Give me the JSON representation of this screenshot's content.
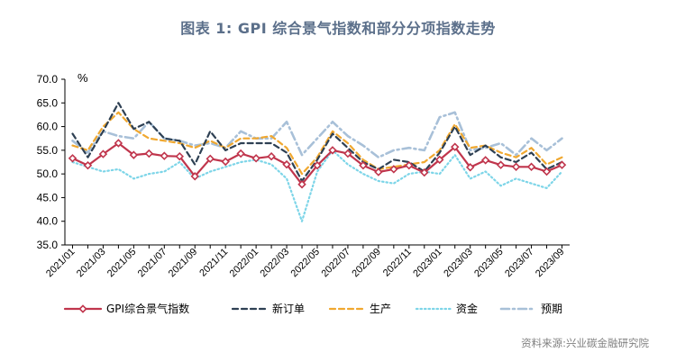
{
  "title": "图表 1:  GPI 综合景气指数和部分分项指数走势",
  "source": "资料来源:兴业碳金融研究院",
  "chart_data": {
    "type": "line",
    "ylabel": "%",
    "ylim": [
      35,
      70
    ],
    "yticks": [
      "70.0",
      "65.0",
      "60.0",
      "55.0",
      "50.0",
      "45.0",
      "40.0",
      "35.0"
    ],
    "x": [
      "2021/01",
      "2021/02",
      "2021/03",
      "2021/04",
      "2021/05",
      "2021/06",
      "2021/07",
      "2021/08",
      "2021/09",
      "2021/10",
      "2021/11",
      "2021/12",
      "2022/01",
      "2022/02",
      "2022/03",
      "2022/04",
      "2022/05",
      "2022/06",
      "2022/07",
      "2022/08",
      "2022/09",
      "2022/10",
      "2022/11",
      "2022/12",
      "2023/01",
      "2023/02",
      "2023/03",
      "2023/04",
      "2023/05",
      "2023/06",
      "2023/07",
      "2023/08",
      "2023/09"
    ],
    "xtick_labels": [
      "2021/01",
      "2021/03",
      "2021/05",
      "2021/07",
      "2021/09",
      "2021/11",
      "2022/01",
      "2022/03",
      "2022/05",
      "2022/07",
      "2022/09",
      "2022/11",
      "2023/01",
      "2023/03",
      "2023/05",
      "2023/07",
      "2023/09"
    ],
    "series": [
      {
        "name": "GPI综合景气指数",
        "color": "#c0354c",
        "style": "solid-diamond",
        "values": [
          53.3,
          51.8,
          54.2,
          56.5,
          54.0,
          54.3,
          53.8,
          53.7,
          49.5,
          53.2,
          52.6,
          54.3,
          53.3,
          53.7,
          52.0,
          47.8,
          51.8,
          55.0,
          54.3,
          51.8,
          50.4,
          51.0,
          51.8,
          50.3,
          53.0,
          55.7,
          51.4,
          52.9,
          51.9,
          51.5,
          51.5,
          50.5,
          51.9
        ]
      },
      {
        "name": "新订单",
        "color": "#2e4053",
        "style": "dash",
        "values": [
          58.5,
          53.5,
          59.0,
          65.0,
          59.5,
          61.0,
          57.5,
          57.0,
          52.0,
          59.0,
          55.0,
          56.5,
          56.5,
          56.5,
          54.5,
          48.5,
          53.0,
          58.5,
          55.5,
          52.5,
          51.0,
          53.0,
          52.5,
          50.5,
          54.5,
          60.0,
          54.0,
          56.0,
          53.5,
          52.5,
          54.5,
          51.0,
          52.5
        ]
      },
      {
        "name": "生产",
        "color": "#f0a830",
        "style": "dash",
        "values": [
          56.0,
          55.0,
          60.0,
          63.0,
          59.5,
          57.5,
          57.0,
          56.5,
          55.5,
          57.0,
          55.5,
          57.5,
          57.5,
          58.0,
          55.5,
          50.0,
          53.5,
          59.0,
          56.5,
          53.0,
          51.0,
          51.5,
          52.0,
          52.5,
          55.0,
          60.5,
          55.5,
          56.0,
          54.5,
          53.5,
          55.5,
          52.0,
          53.5
        ]
      },
      {
        "name": "资金",
        "color": "#7dd5e8",
        "style": "dot",
        "values": [
          52.5,
          51.5,
          50.5,
          51.0,
          49.0,
          50.0,
          50.5,
          52.5,
          49.0,
          50.5,
          51.5,
          52.5,
          53.0,
          52.0,
          49.0,
          40.0,
          50.5,
          55.0,
          52.0,
          50.0,
          48.5,
          48.0,
          50.0,
          50.5,
          50.0,
          54.0,
          49.0,
          50.5,
          47.5,
          49.0,
          48.0,
          47.0,
          50.5
        ]
      },
      {
        "name": "预期",
        "color": "#a8c0d8",
        "style": "dashdot",
        "values": [
          57.0,
          54.5,
          59.0,
          58.0,
          57.5,
          61.0,
          57.5,
          57.0,
          56.0,
          56.5,
          55.5,
          59.0,
          57.5,
          57.5,
          61.0,
          54.0,
          57.5,
          61.0,
          58.0,
          56.0,
          53.5,
          55.0,
          55.5,
          55.0,
          62.0,
          63.0,
          55.0,
          55.5,
          56.5,
          54.0,
          57.5,
          55.0,
          57.5
        ]
      }
    ],
    "legend_position": "bottom",
    "grid": false
  }
}
